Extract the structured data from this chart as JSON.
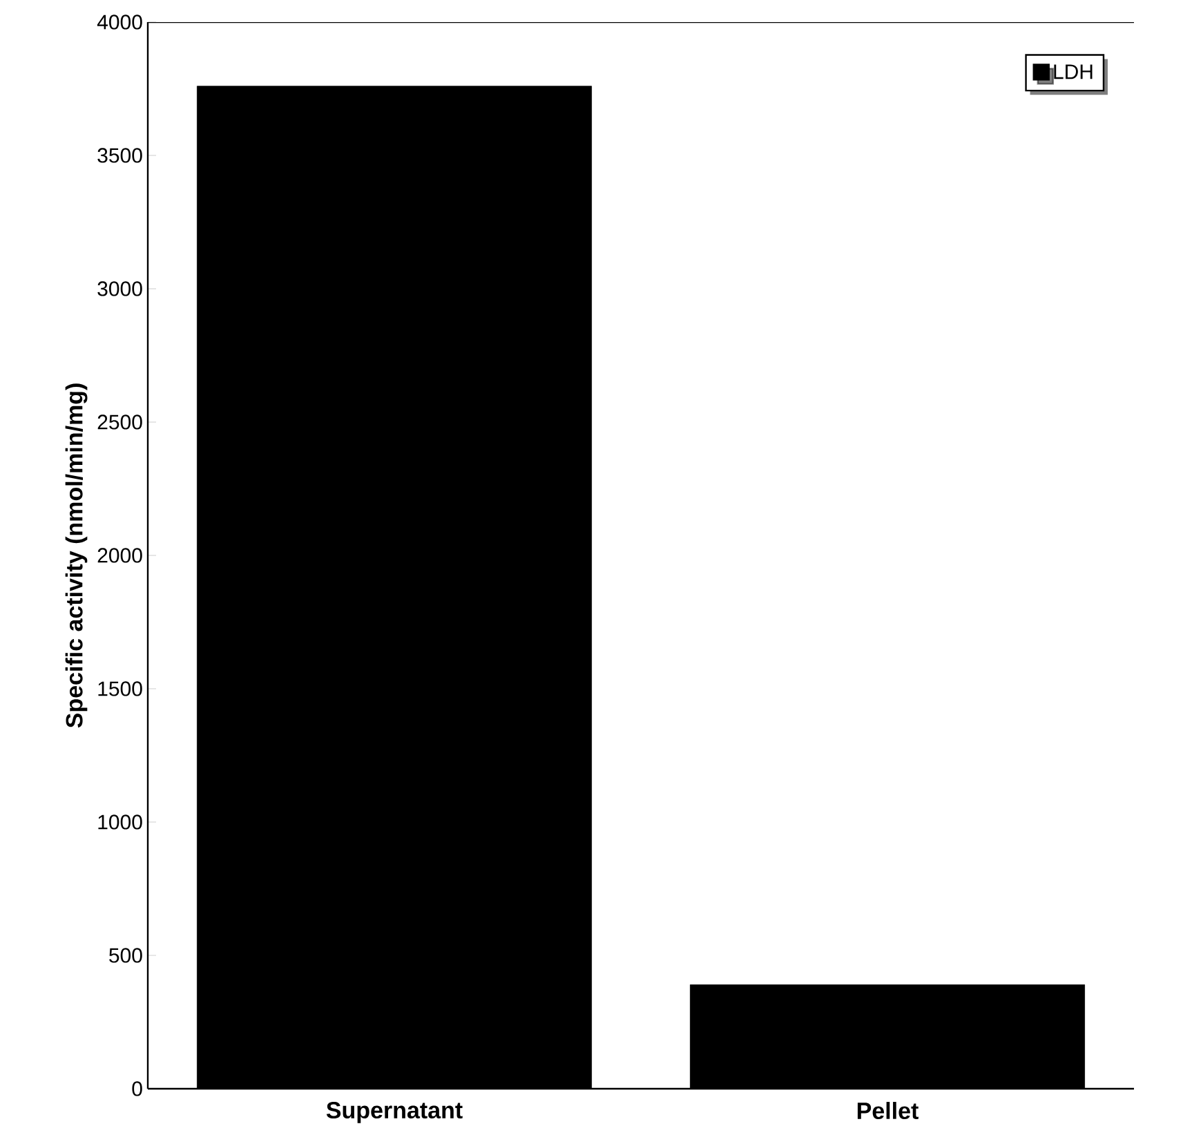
{
  "chart_data": {
    "type": "bar",
    "ylabel": "Specific activity (nmol/min/mg)",
    "categories": [
      "Supernatant",
      "Pellet"
    ],
    "series": [
      {
        "name": "LDH",
        "color": "#000000",
        "values": [
          3760,
          390
        ]
      }
    ],
    "ylim": [
      0,
      4000
    ],
    "yticks": [
      0,
      500,
      1000,
      1500,
      2000,
      2500,
      3000,
      3500,
      4000
    ],
    "grid": false,
    "legend": "top right"
  }
}
